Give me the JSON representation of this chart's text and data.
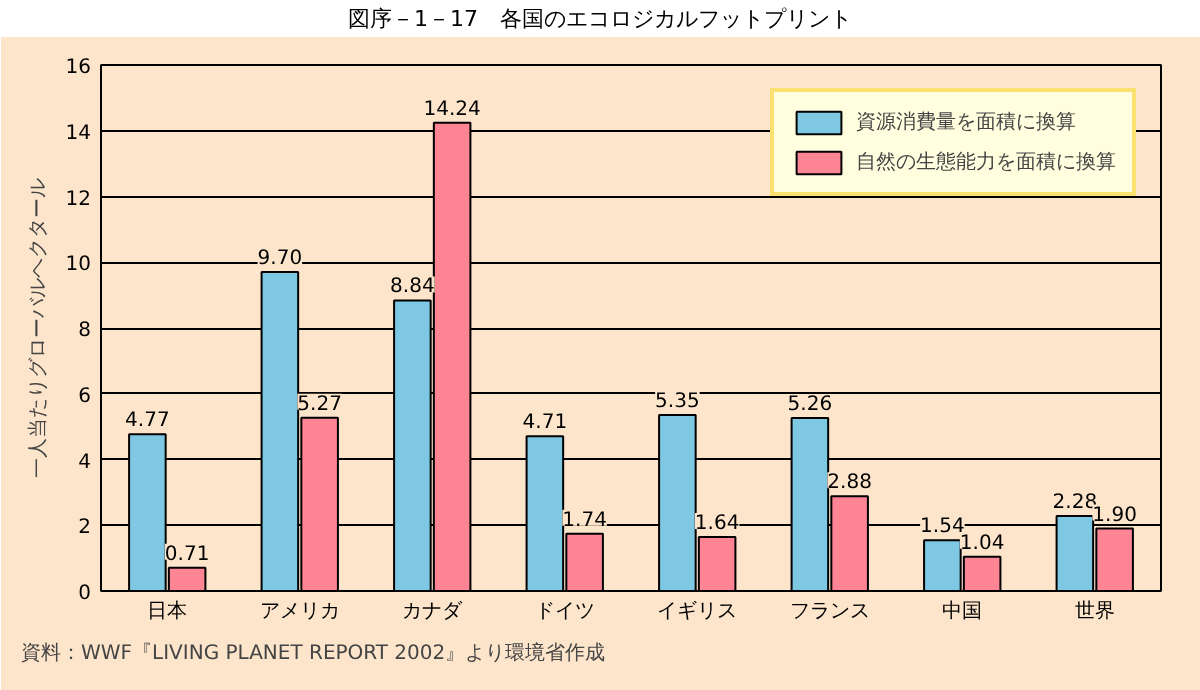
{
  "chart_data": {
    "type": "bar",
    "title": "図序－1－17　各国のエコロジカルフットプリント",
    "ylabel": "一人当たりグローバルヘクタール",
    "categories": [
      "日本",
      "アメリカ",
      "カナダ",
      "ドイツ",
      "イギリス",
      "フランス",
      "中国",
      "世界"
    ],
    "series": [
      {
        "name": "資源消費量を面積に換算",
        "color": "#7ec8e3",
        "values": [
          4.77,
          9.7,
          8.84,
          4.71,
          5.35,
          5.26,
          1.54,
          2.28
        ]
      },
      {
        "name": "自然の生態能力を面積に換算",
        "color": "#ff8595",
        "values": [
          0.71,
          5.27,
          14.24,
          1.74,
          1.64,
          2.88,
          1.04,
          1.9
        ]
      }
    ],
    "value_labels": [
      [
        "4.77",
        "9.70",
        "8.84",
        "4.71",
        "5.35",
        "5.26",
        "1.54",
        "2.28"
      ],
      [
        "0.71",
        "5.27",
        "14.24",
        "1.74",
        "1.64",
        "2.88",
        "1.04",
        "1.90"
      ]
    ],
    "ylim": [
      0,
      16
    ],
    "yticks": [
      0,
      2,
      4,
      6,
      8,
      10,
      12,
      14,
      16
    ],
    "grid": "y",
    "legend": "top right",
    "annotations": [
      "資料：WWF『LIVING PLANET REPORT 2002』より環境省作成"
    ]
  }
}
